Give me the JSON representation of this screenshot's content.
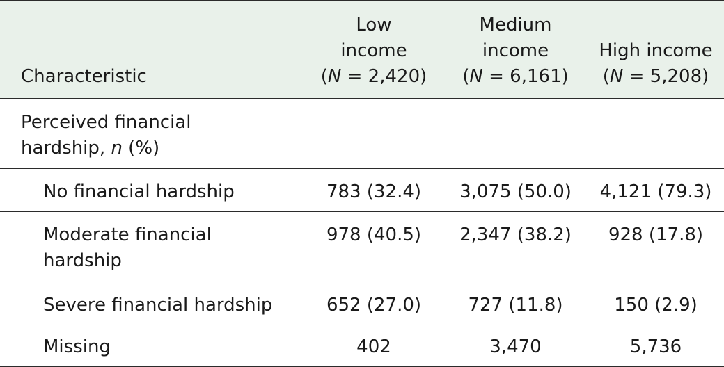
{
  "table": {
    "headers": [
      {
        "lines": [
          "Characteristic"
        ]
      },
      {
        "lines": [
          "Low",
          "income"
        ],
        "n_prefix": "(",
        "n_symbol": "N",
        "n_rest": " = 2,420)"
      },
      {
        "lines": [
          "Medium",
          "income"
        ],
        "n_prefix": "(",
        "n_symbol": "N",
        "n_rest": " = 6,161)"
      },
      {
        "lines": [
          "High income"
        ],
        "n_prefix": "(",
        "n_symbol": "N",
        "n_rest": " = 5,208)"
      }
    ],
    "section": {
      "line1": "Perceived financial",
      "line2_text": "hardship, ",
      "line2_italic": "n",
      "line2_suffix": " (%)"
    },
    "rows": [
      {
        "label": "No financial hardship",
        "low": "783 (32.4)",
        "medium": "3,075 (50.0)",
        "high": "4,121 (79.3)"
      },
      {
        "label_line1": "Moderate financial",
        "label_line2": "hardship",
        "low": "978 (40.5)",
        "medium": "2,347 (38.2)",
        "high": "928 (17.8)"
      },
      {
        "label": "Severe financial hardship",
        "low": "652 (27.0)",
        "medium": "727 (11.8)",
        "high": "150 (2.9)"
      },
      {
        "label": "Missing",
        "low": "402",
        "medium": "3,470",
        "high": "5,736"
      }
    ]
  }
}
